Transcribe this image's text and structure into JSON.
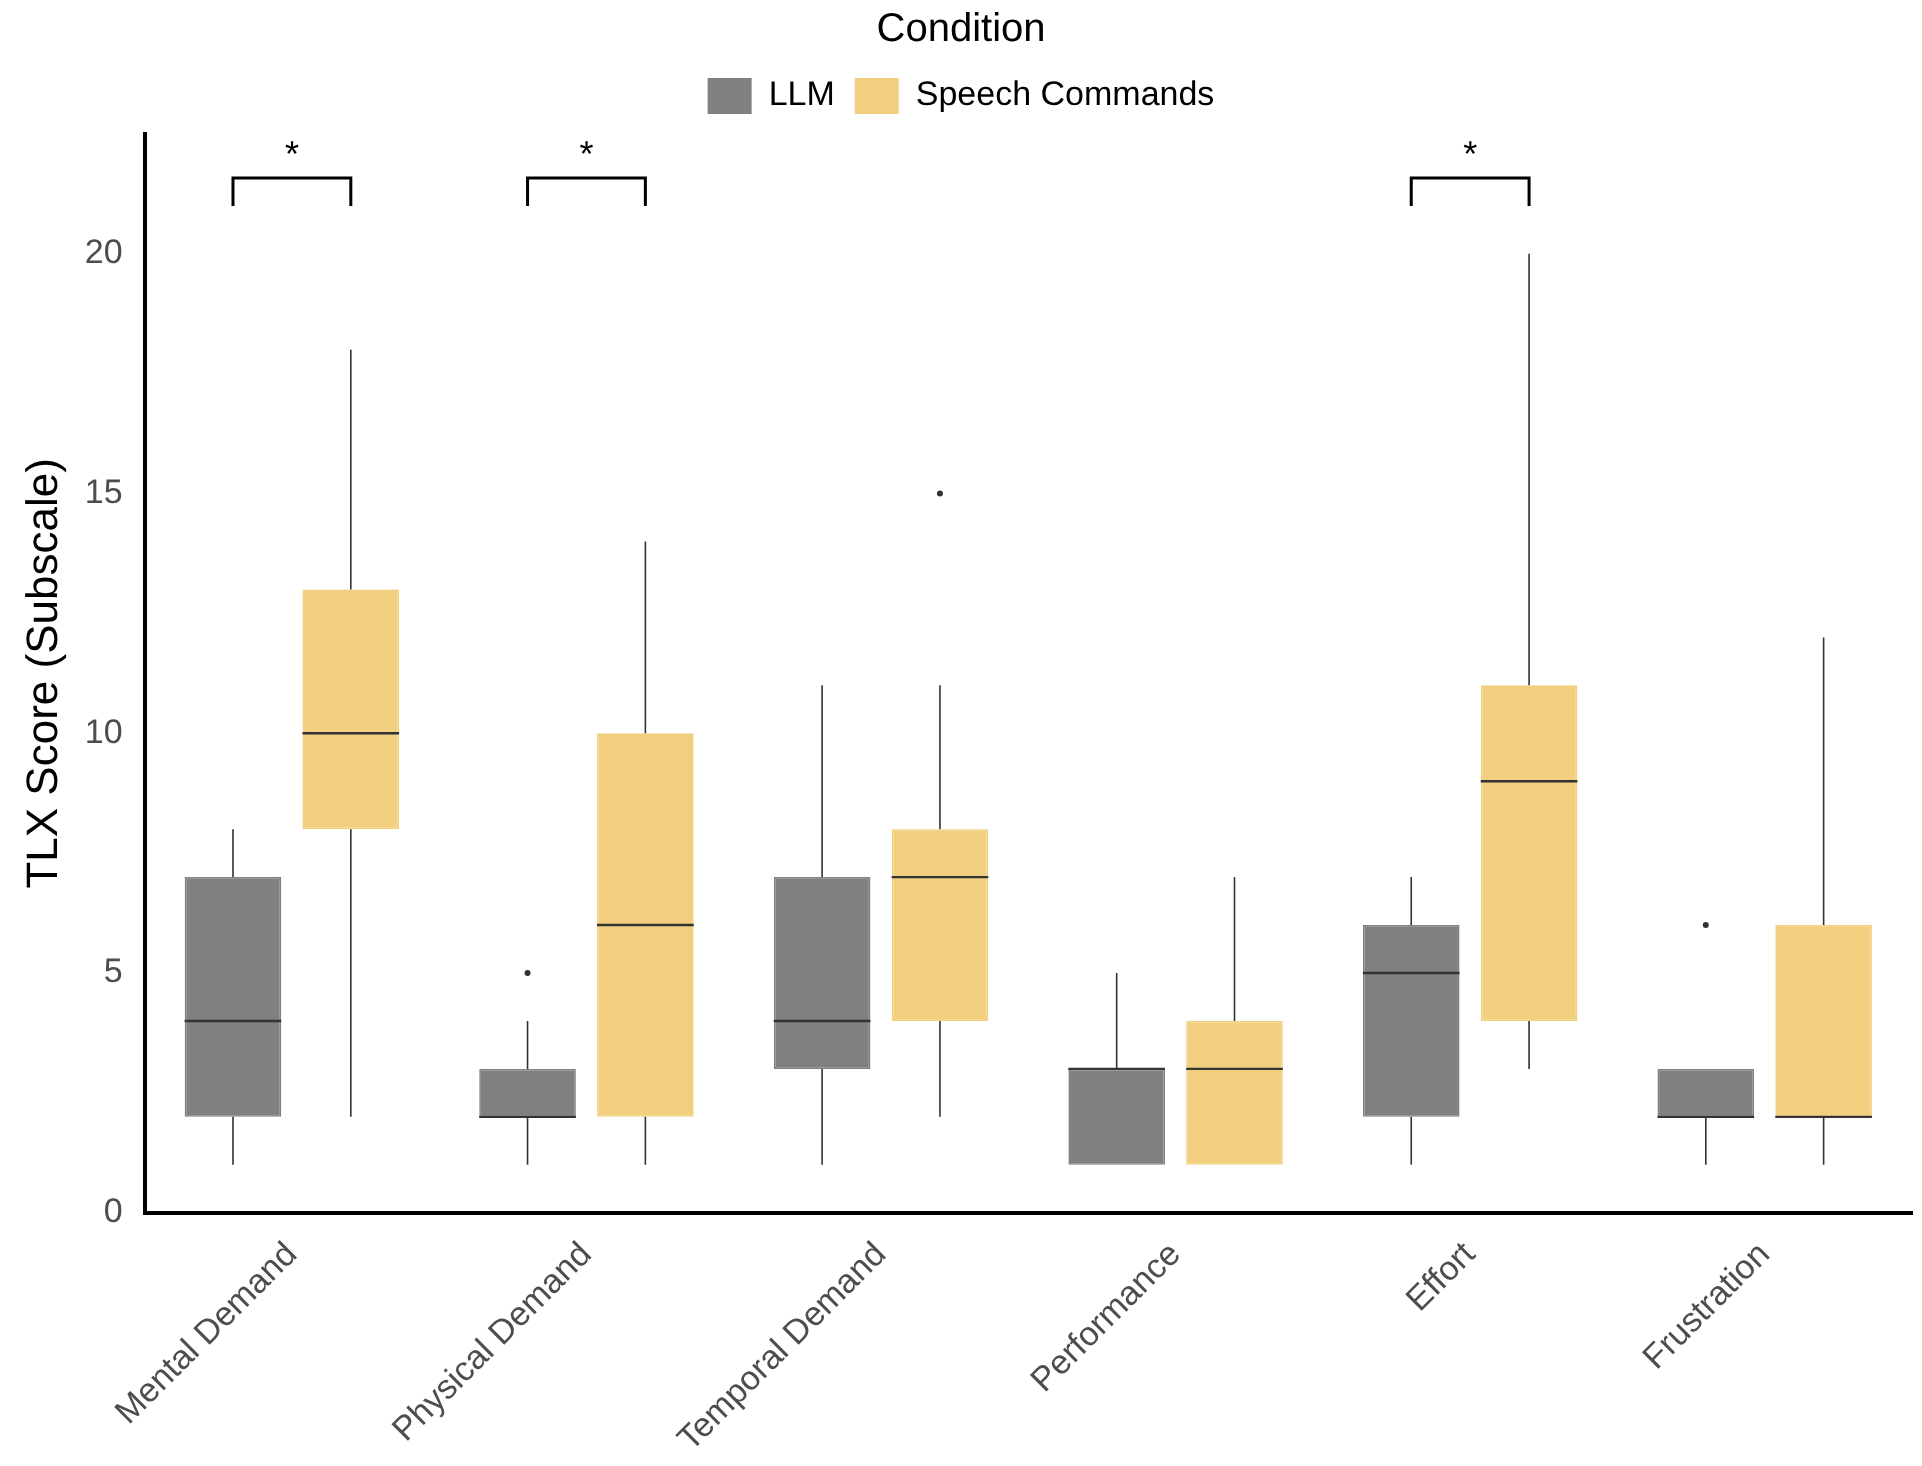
{
  "chart_data": {
    "type": "box",
    "ylabel": "TLX Score (Subscale)",
    "legend_title": "Condition",
    "legend": "top",
    "grid": false,
    "categories": [
      "Mental Demand",
      "Physical Demand",
      "Temporal Demand",
      "Performance",
      "Effort",
      "Frustration"
    ],
    "ylim": [
      0,
      22.5
    ],
    "yticks": [
      0,
      5,
      10,
      15,
      20
    ],
    "series": [
      {
        "name": "LLM",
        "color": "#808080",
        "boxes": [
          {
            "low": 1,
            "q1": 2,
            "median": 4,
            "q3": 7,
            "high": 8
          },
          {
            "low": 1,
            "q1": 2,
            "median": 2,
            "q3": 3,
            "high": 4,
            "outliers": [
              5
            ]
          },
          {
            "low": 1,
            "q1": 3,
            "median": 4,
            "q3": 7,
            "high": 11
          },
          {
            "low": 1,
            "q1": 1,
            "median": 3,
            "q3": 3,
            "high": 5
          },
          {
            "low": 1,
            "q1": 2,
            "median": 5,
            "q3": 6,
            "high": 7
          },
          {
            "low": 1,
            "q1": 2,
            "median": 2,
            "q3": 3,
            "high": 3,
            "outliers": [
              6
            ]
          }
        ]
      },
      {
        "name": "Speech Commands",
        "color": "#f1cf7f",
        "boxes": [
          {
            "low": 2,
            "q1": 8,
            "median": 10,
            "q3": 13,
            "high": 18
          },
          {
            "low": 1,
            "q1": 2,
            "median": 6,
            "q3": 10,
            "high": 14
          },
          {
            "low": 2,
            "q1": 4,
            "median": 7,
            "q3": 8,
            "high": 11,
            "outliers": [
              15
            ]
          },
          {
            "low": 1,
            "q1": 1,
            "median": 3,
            "q3": 4,
            "high": 7
          },
          {
            "low": 3,
            "q1": 4,
            "median": 9,
            "q3": 11,
            "high": 20
          },
          {
            "low": 1,
            "q1": 2,
            "median": 2,
            "q3": 6,
            "high": 12
          }
        ]
      }
    ],
    "annotations": [
      "*",
      "*",
      "*"
    ]
  }
}
